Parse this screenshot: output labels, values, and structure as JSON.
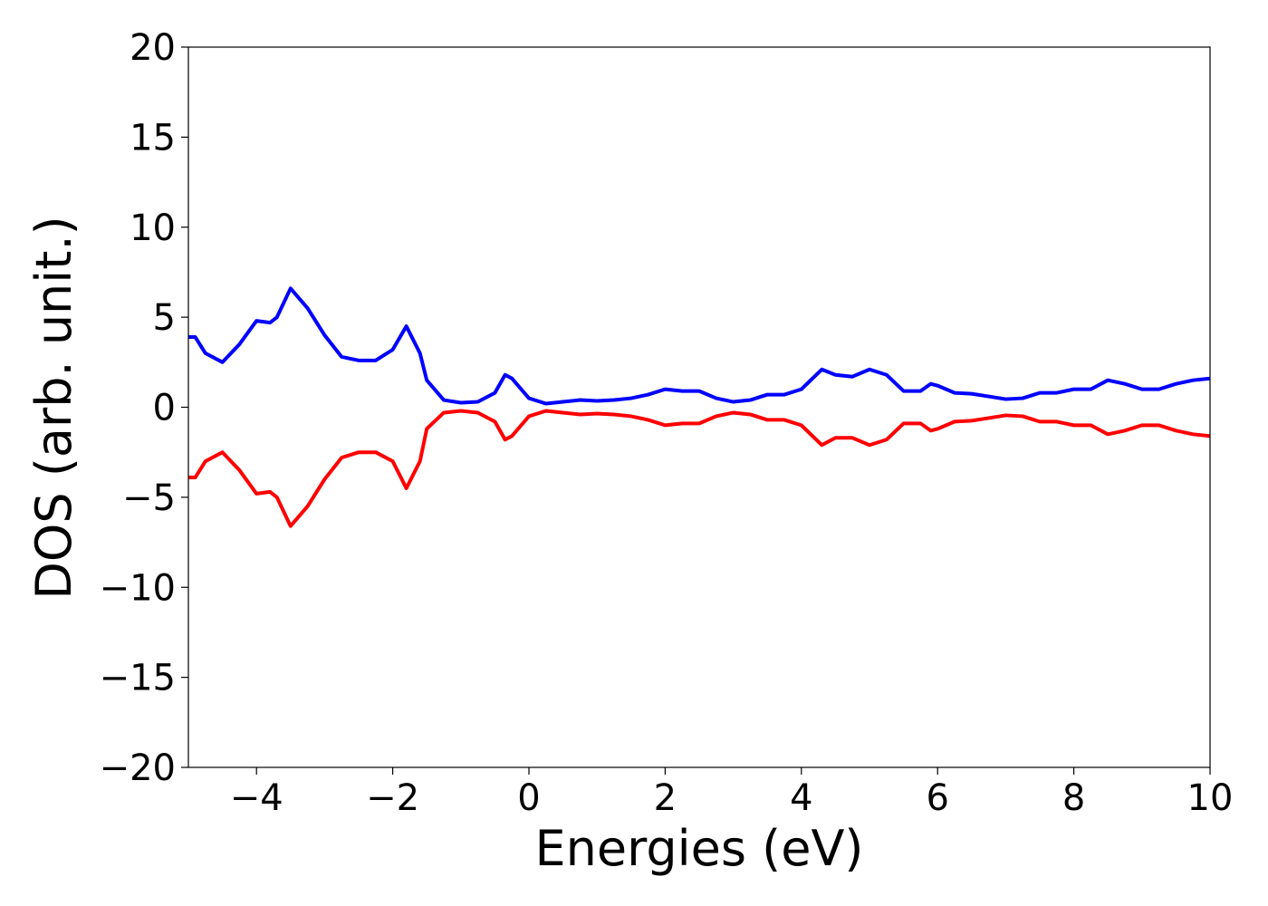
{
  "chart_data": {
    "type": "line",
    "xlabel": "Energies (eV)",
    "ylabel": "DOS (arb. unit.)",
    "x": [
      -5,
      -4.9,
      -4.75,
      -4.5,
      -4.25,
      -4,
      -3.8,
      -3.7,
      -3.5,
      -3.25,
      -3,
      -2.75,
      -2.5,
      -2.25,
      -2,
      -1.8,
      -1.6,
      -1.5,
      -1.25,
      -1,
      -0.75,
      -0.5,
      -0.35,
      -0.25,
      0,
      0.25,
      0.5,
      0.75,
      1,
      1.25,
      1.5,
      1.75,
      2,
      2.25,
      2.5,
      2.75,
      3,
      3.25,
      3.5,
      3.75,
      4,
      4.3,
      4.5,
      4.75,
      5,
      5.25,
      5.5,
      5.75,
      5.9,
      6,
      6.25,
      6.5,
      6.75,
      7,
      7.25,
      7.5,
      7.75,
      8,
      8.25,
      8.5,
      8.75,
      9,
      9.25,
      9.5,
      9.75,
      10
    ],
    "series": [
      {
        "color": "#0000ff",
        "values": [
          3.9,
          3.9,
          3.0,
          2.5,
          3.5,
          4.8,
          4.7,
          5.0,
          6.6,
          5.5,
          4.0,
          2.8,
          2.6,
          2.6,
          3.2,
          4.5,
          3.0,
          1.5,
          0.4,
          0.25,
          0.3,
          0.8,
          1.8,
          1.6,
          0.5,
          0.2,
          0.3,
          0.4,
          0.35,
          0.4,
          0.5,
          0.7,
          1.0,
          0.9,
          0.9,
          0.5,
          0.3,
          0.4,
          0.7,
          0.7,
          1.0,
          2.1,
          1.8,
          1.7,
          2.1,
          1.8,
          0.9,
          0.9,
          1.3,
          1.2,
          0.8,
          0.75,
          0.6,
          0.45,
          0.5,
          0.8,
          0.8,
          1.0,
          1.0,
          1.5,
          1.3,
          1.0,
          1.0,
          1.3,
          1.5,
          1.6
        ]
      },
      {
        "color": "#ff0000",
        "values": [
          -3.9,
          -3.9,
          -3.0,
          -2.5,
          -3.5,
          -4.8,
          -4.7,
          -5.0,
          -6.6,
          -5.5,
          -4.0,
          -2.8,
          -2.5,
          -2.5,
          -3.0,
          -4.5,
          -3.0,
          -1.2,
          -0.3,
          -0.2,
          -0.3,
          -0.8,
          -1.8,
          -1.6,
          -0.5,
          -0.2,
          -0.3,
          -0.4,
          -0.35,
          -0.4,
          -0.5,
          -0.7,
          -1.0,
          -0.9,
          -0.9,
          -0.5,
          -0.3,
          -0.4,
          -0.7,
          -0.7,
          -1.0,
          -2.1,
          -1.7,
          -1.7,
          -2.1,
          -1.8,
          -0.9,
          -0.9,
          -1.3,
          -1.2,
          -0.8,
          -0.75,
          -0.6,
          -0.45,
          -0.5,
          -0.8,
          -0.8,
          -1.0,
          -1.0,
          -1.5,
          -1.3,
          -1.0,
          -1.0,
          -1.3,
          -1.5,
          -1.6
        ]
      }
    ],
    "xlim": [
      -5,
      10
    ],
    "xticks": [
      {
        "value": -4,
        "label": "−4"
      },
      {
        "value": -2,
        "label": "−2"
      },
      0,
      2,
      4,
      6,
      8,
      10
    ],
    "ylim": [
      -20,
      20
    ],
    "yticks": [
      {
        "value": -20,
        "label": "−20"
      },
      {
        "value": -15,
        "label": "−15"
      },
      {
        "value": -10,
        "label": "−10"
      },
      {
        "value": -5,
        "label": "−5"
      },
      0,
      5,
      10,
      15,
      20
    ],
    "grid": false
  }
}
